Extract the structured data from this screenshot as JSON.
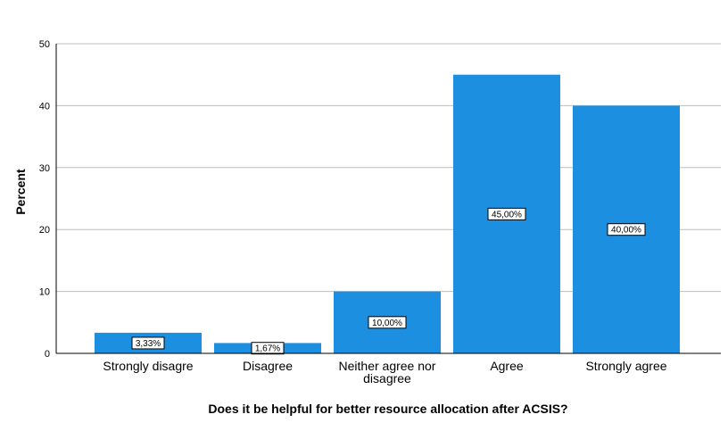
{
  "chart_data": {
    "type": "bar",
    "categories": [
      "Strongly disagre",
      "Disagree",
      "Neither agree nor\ndisagree",
      "Agree",
      "Strongly agree"
    ],
    "values": [
      3.33,
      1.67,
      10,
      45,
      40
    ],
    "data_labels": [
      "3,33%",
      "1,67%",
      "10,00%",
      "45,00%",
      "40,00%"
    ],
    "title": "",
    "xlabel": "Does it be helpful for better resource allocation after ACSIS?",
    "ylabel": "Percent",
    "ylim": [
      0,
      50
    ],
    "yticks": [
      0,
      10,
      20,
      30,
      40,
      50
    ],
    "grid": true,
    "bar_color": "#1d8fe1",
    "legend": "none"
  }
}
